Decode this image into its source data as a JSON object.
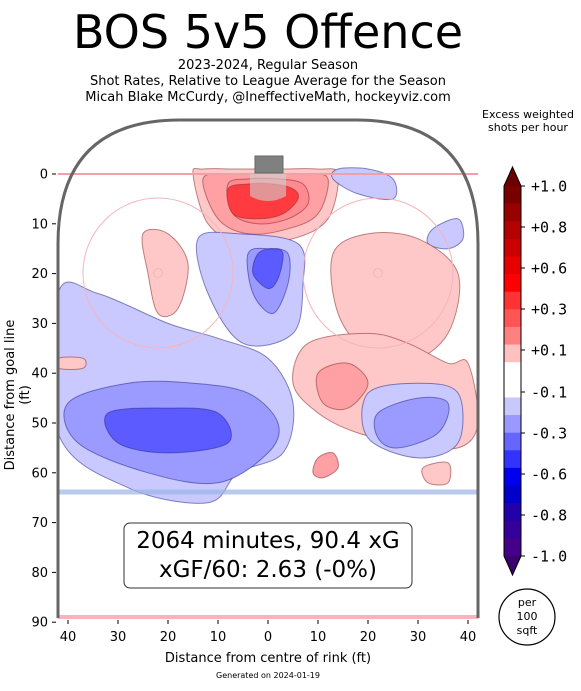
{
  "header": {
    "title": "BOS 5v5 Offence",
    "subtitle_1": "2023-2024, Regular Season",
    "subtitle_2": "Shot Rates, Relative to League Average for the Season",
    "subtitle_3": "Micah Blake McCurdy, @IneffectiveMath, hockeyviz.com"
  },
  "footer": {
    "generated": "Generated on 2024-01-19"
  },
  "stats_box": {
    "line1": "2064 minutes, 90.4 xG",
    "line2": "xGF/60: 2.63 (-0%)"
  },
  "scale_circle": {
    "line1": "per",
    "line2": "100",
    "line3": "sqft"
  },
  "colors": {
    "pos_dark": "#e0606a",
    "pos_light": "#ffc8c8",
    "neg_dark": "#4d4df5",
    "neg_light": "#c9c9ff",
    "rink": "#666666"
  },
  "chart_data": {
    "type": "heatmap",
    "xlabel": "Distance from centre of rink (ft)",
    "ylabel": "Distance from goal line (ft)",
    "x_ticks": [
      "40",
      "30",
      "20",
      "10",
      "0",
      "10",
      "20",
      "30",
      "40"
    ],
    "y_ticks": [
      "0",
      "10",
      "20",
      "30",
      "40",
      "50",
      "60",
      "70",
      "80",
      "90"
    ],
    "xlim": [
      -42.5,
      42.5
    ],
    "ylim": [
      90,
      -11
    ],
    "colorbar": {
      "title": "Excess weighted shots per hour",
      "tick_labels": [
        "+1.0",
        "+0.8",
        "+0.6",
        "+0.3",
        "+0.1",
        "-0.1",
        "-0.3",
        "-0.6",
        "-0.8",
        "-1.0"
      ],
      "tick_values": [
        1.0,
        0.8,
        0.6,
        0.3,
        0.1,
        -0.1,
        -0.3,
        -0.6,
        -0.8,
        -1.0
      ],
      "band_colors": [
        "#7a0000",
        "#990000",
        "#b30000",
        "#cc0000",
        "#e60000",
        "#ff0000",
        "#ff3333",
        "#ff5555",
        "#ff8080",
        "#ffc0c0",
        "#ffffff",
        "#ffffff",
        "#c8c8ff",
        "#9999ff",
        "#6666ff",
        "#3333ff",
        "#0000ee",
        "#0000cc",
        "#2200aa",
        "#330099",
        "#440088"
      ]
    },
    "regions": [
      {
        "level": "pos_light",
        "x": [
          -15,
          -12,
          -5,
          5,
          12,
          14,
          10,
          2,
          -6,
          -13
        ],
        "y": [
          0,
          10,
          14,
          13,
          9,
          0,
          -1,
          -1,
          -1,
          -1
        ]
      },
      {
        "level": "pos_dark",
        "x": [
          -13,
          -10,
          -4,
          4,
          10,
          12,
          8,
          0,
          -8
        ],
        "y": [
          1,
          9,
          12,
          11,
          8,
          1,
          0,
          0,
          0
        ]
      },
      {
        "level": "pos_mid",
        "x": [
          -8,
          -7,
          -2,
          4,
          8,
          7,
          2,
          -4
        ],
        "y": [
          2,
          8,
          10,
          9,
          6,
          2,
          1,
          1
        ]
      },
      {
        "level": "pos_darker",
        "x": [
          -8,
          -7,
          -2,
          3,
          6,
          5,
          1,
          -4
        ],
        "y": [
          3,
          8,
          9,
          8,
          5,
          3,
          2,
          2
        ]
      },
      {
        "level": "neg_light",
        "x": [
          13,
          18,
          25,
          25,
          20,
          14
        ],
        "y": [
          1,
          4,
          5,
          1,
          -1,
          -1
        ]
      },
      {
        "level": "neg_light",
        "x": [
          33,
          38,
          39,
          36,
          32
        ],
        "y": [
          11,
          9,
          13,
          15,
          14
        ]
      },
      {
        "level": "pos_light",
        "x": [
          -25,
          -20,
          -16,
          -18,
          -22,
          -24
        ],
        "y": [
          12,
          12,
          18,
          27,
          28,
          20
        ]
      },
      {
        "level": "neg_light",
        "x": [
          -14,
          -6,
          6,
          7,
          5,
          -5,
          -12
        ],
        "y": [
          13,
          12,
          14,
          22,
          32,
          34,
          24
        ]
      },
      {
        "level": "neg_dark",
        "x": [
          -4,
          0,
          4,
          4,
          1,
          -3
        ],
        "y": [
          16,
          15,
          16,
          22,
          28,
          24
        ]
      },
      {
        "level": "neg_darker",
        "x": [
          -2,
          1,
          3,
          2,
          0,
          -3
        ],
        "y": [
          16,
          15,
          16,
          21,
          23,
          20
        ]
      },
      {
        "level": "pos_light",
        "x": [
          13,
          20,
          30,
          38,
          36,
          28,
          20,
          14
        ],
        "y": [
          16,
          12,
          13,
          20,
          32,
          38,
          36,
          28
        ]
      },
      {
        "level": "pos_light",
        "x": [
          8,
          20,
          28,
          36,
          40,
          42,
          38,
          28,
          18,
          10,
          5
        ],
        "y": [
          34,
          32,
          34,
          38,
          38,
          50,
          55,
          54,
          52,
          48,
          42
        ]
      },
      {
        "level": "pos_dark",
        "x": [
          10,
          16,
          20,
          16,
          11
        ],
        "y": [
          40,
          38,
          42,
          47,
          46
        ]
      },
      {
        "level": "neg_light",
        "x": [
          -42,
          -34,
          -20,
          -10,
          0,
          5,
          3,
          -6,
          -12,
          -28,
          -42
        ],
        "y": [
          24,
          24,
          30,
          33,
          37,
          46,
          56,
          60,
          66,
          63,
          52
        ]
      },
      {
        "level": "neg_dark",
        "x": [
          -40,
          -28,
          -15,
          -4,
          2,
          0,
          -10,
          -24,
          -38
        ],
        "y": [
          46,
          42,
          42,
          44,
          50,
          56,
          62,
          60,
          54
        ]
      },
      {
        "level": "neg_darker",
        "x": [
          -32,
          -20,
          -10,
          -8,
          -20,
          -30
        ],
        "y": [
          48,
          47,
          48,
          54,
          56,
          54
        ]
      },
      {
        "level": "neg_light",
        "x": [
          20,
          30,
          38,
          38,
          30,
          20
        ],
        "y": [
          44,
          42,
          44,
          54,
          57,
          53
        ]
      },
      {
        "level": "neg_dark",
        "x": [
          22,
          30,
          36,
          34,
          26,
          22
        ],
        "y": [
          48,
          45,
          46,
          52,
          55,
          53
        ]
      },
      {
        "level": "pos_dark",
        "x": [
          10,
          13,
          14,
          11,
          9
        ],
        "y": [
          57,
          56,
          59,
          61,
          60
        ]
      },
      {
        "level": "pos_light",
        "x": [
          31,
          36,
          36,
          32
        ],
        "y": [
          59,
          58,
          62,
          62
        ]
      },
      {
        "level": "pos_light",
        "x": [
          -42,
          -37,
          -37,
          -42
        ],
        "y": [
          37,
          37,
          39,
          39
        ]
      }
    ]
  }
}
